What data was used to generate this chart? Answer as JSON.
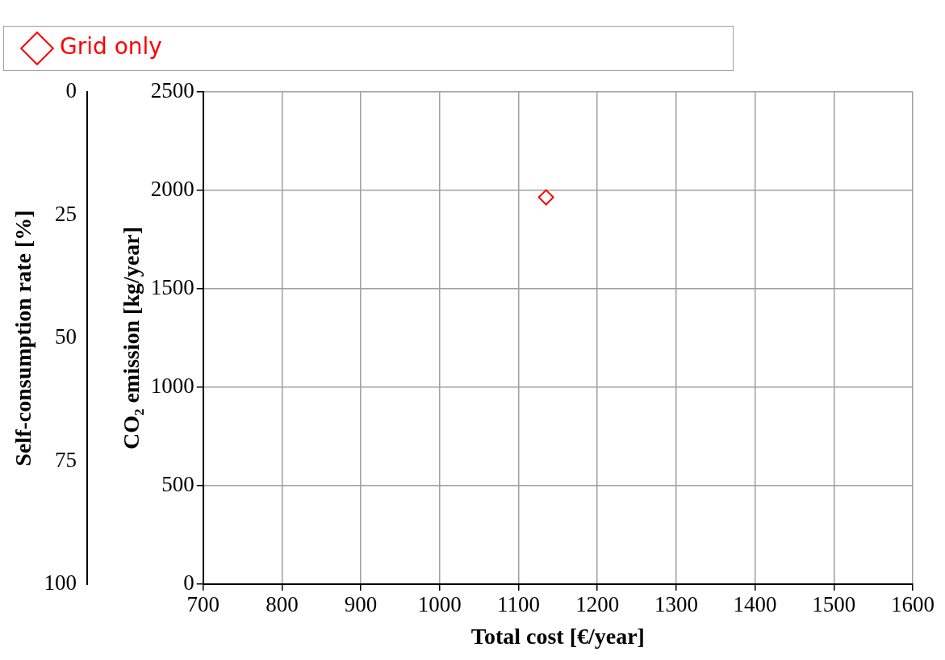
{
  "chart_data": {
    "type": "scatter",
    "xlabel": "Total cost [€/year]",
    "ylabel": "CO₂ emission [kg/year]",
    "y2label": "Self-consumption rate [%]",
    "x": [
      1135
    ],
    "series": [
      {
        "name": "Grid only",
        "color": "#ff0000",
        "values": [
          1965
        ],
        "marker": "diamond"
      }
    ],
    "xlim": [
      700,
      1600
    ],
    "xticks": [
      700,
      800,
      900,
      1000,
      1100,
      1200,
      1300,
      1400,
      1500,
      1600
    ],
    "ylim": [
      0,
      2500
    ],
    "yticks": [
      0,
      500,
      1000,
      1500,
      2000,
      2500
    ],
    "y2lim": [
      100,
      0
    ],
    "y2ticks": [
      0,
      25,
      50,
      75,
      100
    ],
    "grid": true,
    "legend": "top"
  }
}
